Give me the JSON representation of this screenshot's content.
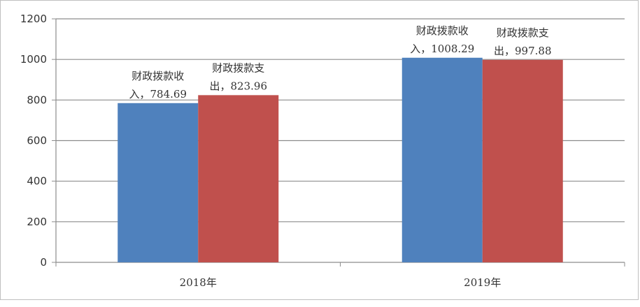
{
  "chart_data": {
    "type": "bar",
    "categories": [
      "2018年",
      "2019年"
    ],
    "series": [
      {
        "name": "财政拨款收入",
        "color": "#4f81bd",
        "values": [
          784.69,
          1008.29
        ],
        "label_lines": [
          [
            "财政拨款收",
            "入，784.69"
          ],
          [
            "财政拨款收",
            "入，1008.29"
          ]
        ]
      },
      {
        "name": "财政拨款支出",
        "color": "#c0504d",
        "values": [
          823.96,
          997.88
        ],
        "label_lines": [
          [
            "财政拨款支",
            "出，823.96"
          ],
          [
            "财政拨款支",
            "出，997.88"
          ]
        ]
      }
    ],
    "y_ticks": [
      "0",
      "200",
      "400",
      "600",
      "800",
      "1000",
      "1200"
    ],
    "ylim": [
      0,
      1200
    ],
    "grid": true,
    "legend": "none",
    "title": "",
    "xlabel": "",
    "ylabel": ""
  }
}
